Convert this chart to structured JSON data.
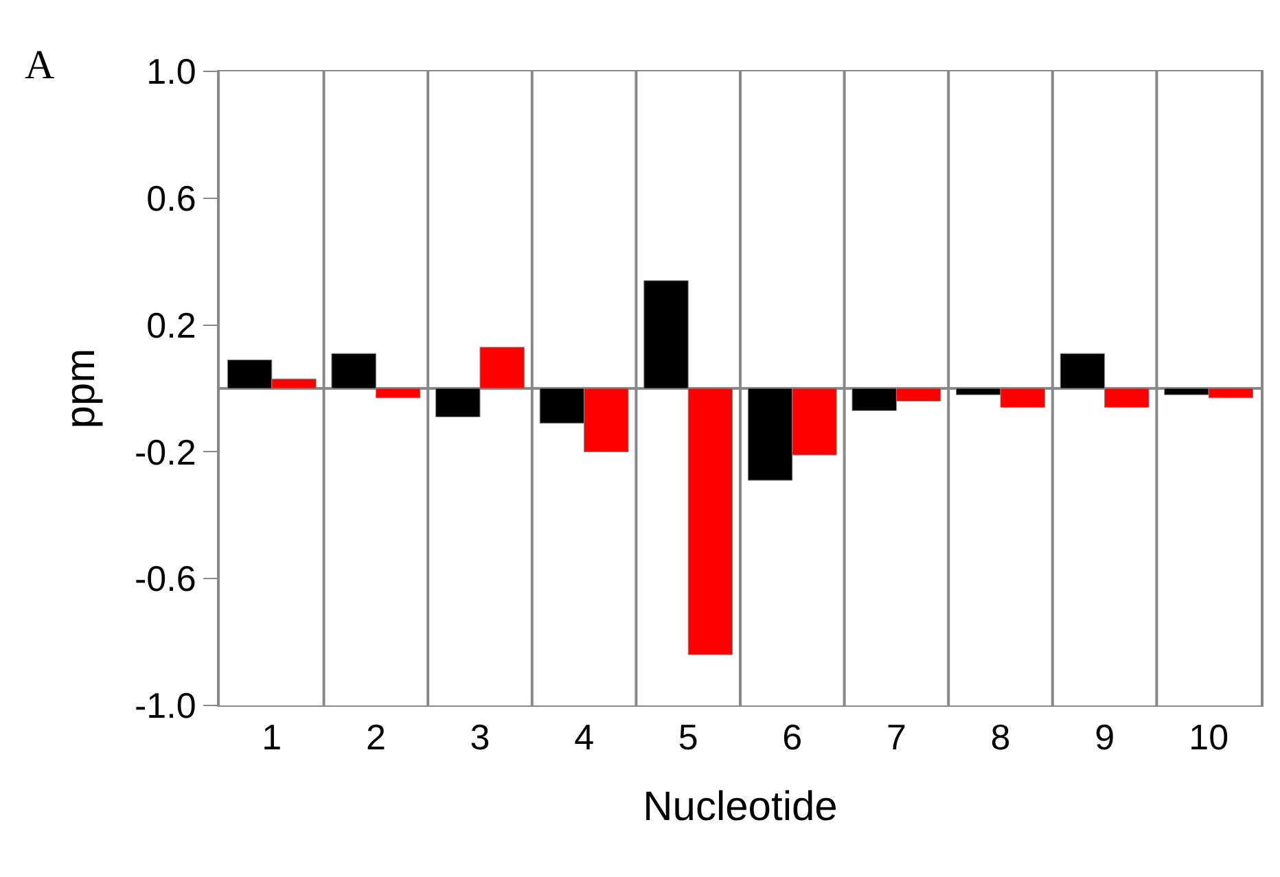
{
  "chart_data": {
    "type": "bar",
    "categories": [
      "1",
      "2",
      "3",
      "4",
      "5",
      "6",
      "7",
      "8",
      "9",
      "10"
    ],
    "series": [
      {
        "color": "#000000",
        "values": [
          0.09,
          0.11,
          -0.09,
          -0.11,
          0.34,
          -0.29,
          -0.07,
          -0.02,
          0.11,
          -0.02
        ]
      },
      {
        "color": "#ff0000",
        "values": [
          0.03,
          -0.03,
          0.13,
          -0.2,
          -0.84,
          -0.21,
          -0.04,
          -0.06,
          -0.06,
          -0.03
        ]
      }
    ],
    "xlabel": "Nucleotide",
    "ylabel": "ppm",
    "annotations": [
      "A"
    ],
    "ylim": [
      -1.0,
      1.0
    ],
    "yticks": [
      {
        "value": 1.0,
        "label": "1.0"
      },
      {
        "value": 0.6,
        "label": "0.6"
      },
      {
        "value": 0.2,
        "label": "0.2"
      },
      {
        "value": -0.2,
        "label": "-0.2"
      },
      {
        "value": -0.6,
        "label": "-0.6"
      },
      {
        "value": -1.0,
        "label": "-1.0"
      }
    ],
    "grid": "x"
  }
}
